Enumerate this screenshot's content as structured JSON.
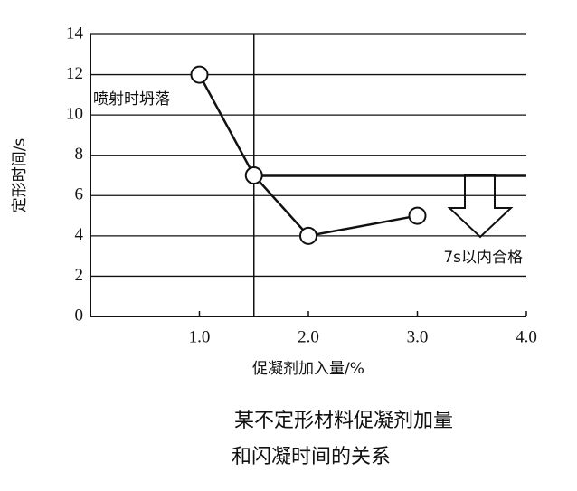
{
  "chart_data": {
    "type": "line",
    "x_label": "促凝剂加入量/%",
    "y_label": "定形时间/s",
    "x": [
      1.0,
      1.5,
      2.0,
      3.0
    ],
    "series": [
      {
        "color": "#111111",
        "values": [
          12,
          7,
          4,
          5
        ]
      }
    ],
    "xlim": [
      0,
      4
    ],
    "ylim": [
      0,
      14
    ],
    "xticks": [
      {
        "value": 1,
        "label": "1.0"
      },
      {
        "value": 2,
        "label": "2.0"
      },
      {
        "value": 3,
        "label": "3.0"
      },
      {
        "value": 4,
        "label": "4.0"
      }
    ],
    "yticks": [
      0,
      2,
      4,
      6,
      8,
      10,
      12,
      14
    ],
    "grid": true,
    "vline": 1.5,
    "hline": 7,
    "annotations": [
      "喷射时坍落",
      "7s以内合格"
    ],
    "caption": [
      "某不定形材料促凝剂加量",
      "和闪凝时间的关系"
    ]
  }
}
